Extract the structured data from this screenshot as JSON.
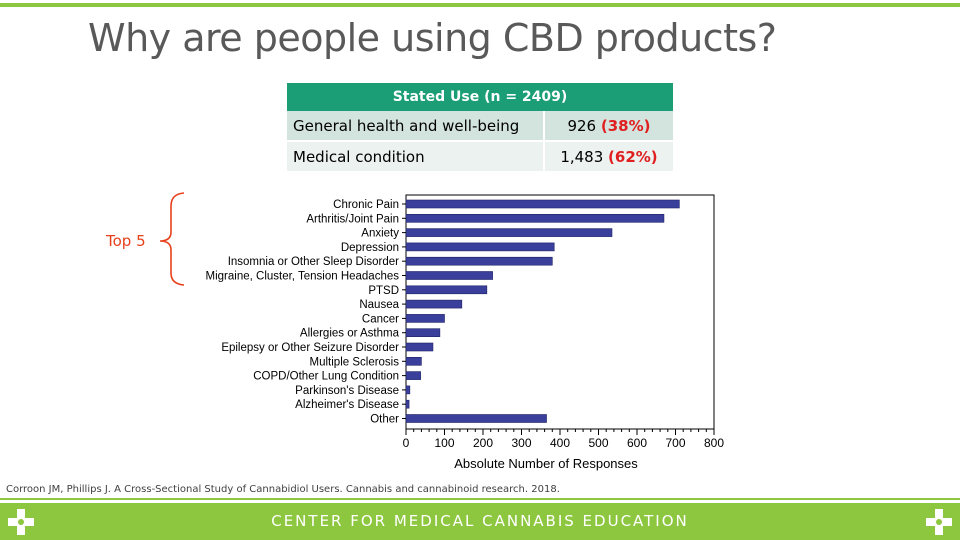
{
  "slide": {
    "title": "Why are people using CBD products?",
    "top5_label": "Top 5",
    "citation": "Corroon JM, Phillips J. A Cross-Sectional Study of Cannabidiol Users. Cannabis and cannabinoid research. 2018.",
    "footer": "CENTER FOR MEDICAL CANNABIS EDUCATION"
  },
  "stated_use": {
    "header": "Stated Use (n = 2409)",
    "rows": [
      {
        "label": "General health and well-being",
        "count": "926",
        "pct": "(38%)"
      },
      {
        "label": "Medical condition",
        "count": "1,483",
        "pct": "(62%)"
      }
    ]
  },
  "colors": {
    "bar": "#3a3f9c",
    "accent_green": "#8dc63f",
    "table_header": "#1b9d76",
    "highlight_red": "#e02020",
    "bracket": "#e8401c"
  },
  "chart_data": {
    "type": "bar",
    "orientation": "horizontal",
    "categories": [
      "Chronic Pain",
      "Arthritis/Joint Pain",
      "Anxiety",
      "Depression",
      "Insomnia or Other Sleep Disorder",
      "Migraine, Cluster, Tension Headaches",
      "PTSD",
      "Nausea",
      "Cancer",
      "Allergies or Asthma",
      "Epilepsy or Other Seizure Disorder",
      "Multiple Sclerosis",
      "COPD/Other Lung Condition",
      "Parkinson's Disease",
      "Alzheimer's Disease",
      "Other"
    ],
    "values": [
      710,
      670,
      535,
      385,
      380,
      225,
      210,
      145,
      100,
      88,
      70,
      40,
      38,
      10,
      8,
      365
    ],
    "xlabel": "Absolute Number of Responses",
    "xlim": [
      0,
      800
    ],
    "xticks": [
      "0",
      "100",
      "200",
      "300",
      "400",
      "500",
      "600",
      "700",
      "800"
    ],
    "grid": false
  }
}
